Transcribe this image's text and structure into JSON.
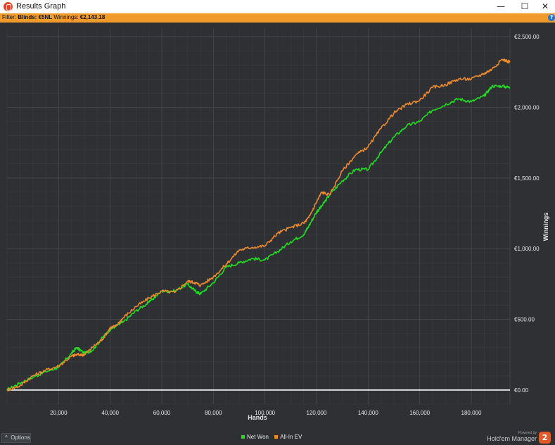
{
  "window": {
    "title": "Results Graph",
    "minimize_glyph": "—",
    "maximize_glyph": "☐",
    "close_glyph": "✕"
  },
  "filter": {
    "prefix": "Filter:",
    "blinds_label": "Blinds:",
    "blinds_value": "€5NL",
    "winnings_label": "Winnings:",
    "winnings_value": "€2,143.18",
    "help_glyph": "?"
  },
  "bottom": {
    "options_label": "Options",
    "options_glyph": "^",
    "powered_by": "Powered by",
    "brand_name": "Hold'em Manager",
    "brand_logo": "2"
  },
  "colors": {
    "background": "#2e3033",
    "grid": "#44474c",
    "grid_minor": "#393c40",
    "net_won": "#22dd22",
    "all_in_ev": "#f08a2c",
    "zero_line": "#ffffff",
    "text": "#e6e6e6"
  },
  "chart_data": {
    "type": "line",
    "title": "",
    "xlabel": "Hands",
    "ylabel": "Winnings",
    "xlim": [
      0,
      195000
    ],
    "ylim": [
      -100,
      2560
    ],
    "x_ticks": [
      20000,
      40000,
      60000,
      80000,
      100000,
      120000,
      140000,
      160000,
      180000
    ],
    "x_tick_labels": [
      "20,000",
      "40,000",
      "60,000",
      "80,000",
      "100,000",
      "120,000",
      "140,000",
      "160,000",
      "180,000"
    ],
    "y_ticks": [
      0,
      500,
      1000,
      1500,
      2000,
      2500
    ],
    "y_tick_labels": [
      "€0.00",
      "€500.00",
      "€1,000.00",
      "€1,500.00",
      "€2,000.00",
      "€2,500.00"
    ],
    "grid": true,
    "legend_position": "bottom-center",
    "series": [
      {
        "name": "Net Won",
        "color": "#22dd22",
        "x": [
          0,
          5000,
          10000,
          15000,
          20000,
          25000,
          27000,
          30000,
          33000,
          37000,
          40000,
          42000,
          45000,
          50000,
          55000,
          60000,
          65000,
          70000,
          73000,
          75000,
          80000,
          85000,
          90000,
          95000,
          100000,
          105000,
          110000,
          115000,
          117000,
          120000,
          122000,
          125000,
          130000,
          135000,
          140000,
          145000,
          150000,
          155000,
          160000,
          165000,
          170000,
          175000,
          180000,
          185000,
          188000,
          192000,
          195000
        ],
        "values": [
          0,
          50,
          90,
          130,
          160,
          260,
          300,
          260,
          280,
          370,
          430,
          450,
          480,
          560,
          620,
          700,
          700,
          750,
          700,
          680,
          760,
          870,
          900,
          930,
          920,
          980,
          1050,
          1100,
          1160,
          1260,
          1300,
          1380,
          1480,
          1560,
          1560,
          1680,
          1790,
          1870,
          1900,
          1980,
          2020,
          2060,
          2040,
          2080,
          2150,
          2150,
          2140
        ]
      },
      {
        "name": "All-In EV",
        "color": "#f08a2c",
        "x": [
          0,
          5000,
          10000,
          15000,
          20000,
          25000,
          27000,
          30000,
          33000,
          37000,
          40000,
          42000,
          45000,
          50000,
          55000,
          60000,
          65000,
          70000,
          73000,
          75000,
          80000,
          85000,
          90000,
          95000,
          100000,
          105000,
          110000,
          115000,
          117000,
          120000,
          122000,
          125000,
          130000,
          135000,
          140000,
          145000,
          150000,
          155000,
          160000,
          165000,
          170000,
          175000,
          180000,
          185000,
          188000,
          192000,
          195000
        ],
        "values": [
          0,
          30,
          100,
          140,
          170,
          240,
          250,
          250,
          300,
          360,
          440,
          450,
          510,
          590,
          650,
          700,
          690,
          770,
          760,
          740,
          800,
          890,
          990,
          1010,
          1020,
          1110,
          1150,
          1180,
          1220,
          1330,
          1400,
          1380,
          1550,
          1660,
          1720,
          1850,
          1960,
          2020,
          2050,
          2140,
          2160,
          2200,
          2200,
          2240,
          2270,
          2340,
          2320
        ]
      }
    ]
  }
}
